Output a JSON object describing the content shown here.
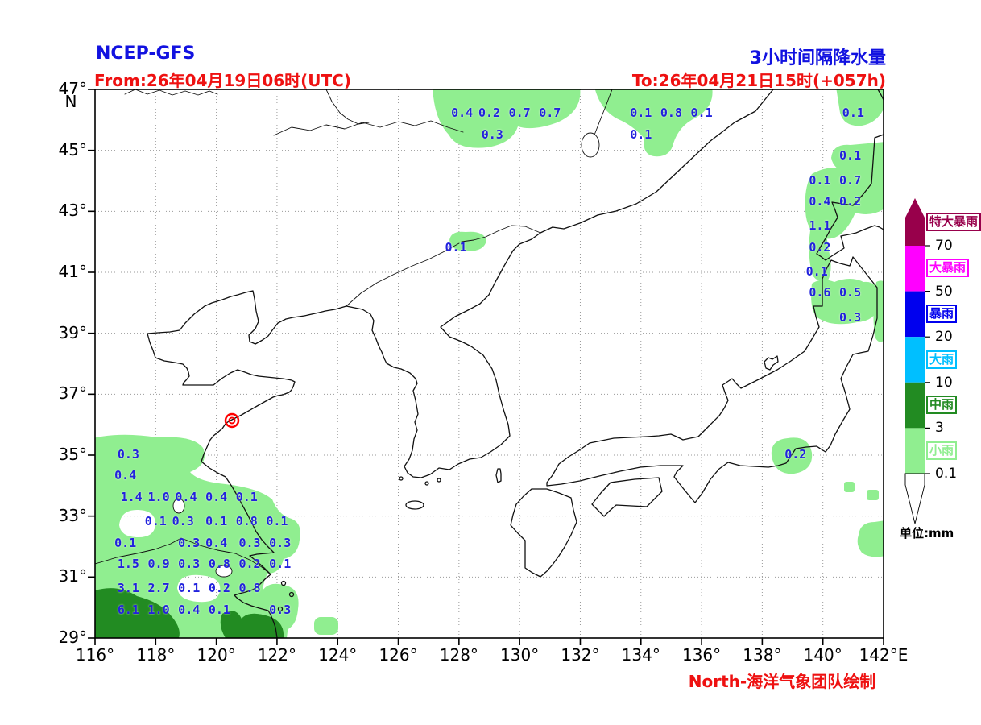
{
  "header": {
    "model_label": "NCEP-GFS",
    "title": "3小时间隔降水量",
    "from_label": "From:26年04月19日06时(UTC)",
    "to_label": "To:26年04月21日15时(+057h)"
  },
  "footer": {
    "credit": "North-海洋气象团队绘制"
  },
  "colors": {
    "title_blue": "#1212e0",
    "annot_red": "#ee1111",
    "value_blue": "#2222dd",
    "light_green": "#90ee90",
    "dark_green": "#228b22",
    "cyan": "#00bfff",
    "blue": "#0000ee",
    "magenta": "#ff00ff",
    "maroon": "#98004b",
    "marker_red": "#ff0000"
  },
  "map": {
    "x_axis": {
      "ticks": [
        "116°",
        "118°",
        "120°",
        "122°",
        "124°",
        "126°",
        "128°",
        "130°",
        "132°",
        "134°",
        "136°",
        "138°",
        "140°",
        "142°E"
      ],
      "lon_values": [
        116,
        118,
        120,
        122,
        124,
        126,
        128,
        130,
        132,
        134,
        136,
        138,
        140,
        142
      ]
    },
    "y_axis": {
      "ticks": [
        "47°",
        "45°",
        "43°",
        "41°",
        "39°",
        "37°",
        "35°",
        "33°",
        "31°",
        "29°"
      ],
      "lat_values": [
        47,
        45,
        43,
        41,
        39,
        37,
        35,
        33,
        31,
        29
      ],
      "hemisphere_label": "N"
    }
  },
  "legend": {
    "unit_label": "单位:mm",
    "thresholds": [
      "70",
      "50",
      "20",
      "10",
      "3",
      "0.1"
    ],
    "categories": [
      {
        "label": "特大暴雨",
        "color": "#98004b"
      },
      {
        "label": "大暴雨",
        "color": "#ff00ff"
      },
      {
        "label": "暴雨",
        "color": "#0000ee"
      },
      {
        "label": "大雨",
        "color": "#00bfff"
      },
      {
        "label": "中雨",
        "color": "#228b22"
      },
      {
        "label": "小雨",
        "color": "#90ee90"
      }
    ]
  },
  "chart_data": {
    "type": "heatmap",
    "title": "3小时间隔降水量",
    "model": "NCEP-GFS",
    "valid_from": "26年04月19日06时(UTC)",
    "valid_to": "26年04月21日15时(+057h)",
    "units": "mm",
    "lon_range": [
      116,
      142
    ],
    "lat_range": [
      29,
      47
    ],
    "grid_interval_deg": 2,
    "legend_scale_mm": [
      0.1,
      3,
      10,
      20,
      50,
      70
    ],
    "marker": {
      "name": "cyclone-center-marker",
      "lon": 120.5,
      "lat": 36.1
    },
    "points": [
      {
        "v": "0.4",
        "lon": 128.1,
        "lat": 46.2
      },
      {
        "v": "0.2",
        "lon": 129.0,
        "lat": 46.2
      },
      {
        "v": "0.7",
        "lon": 130.0,
        "lat": 46.2
      },
      {
        "v": "0.7",
        "lon": 131.0,
        "lat": 46.2
      },
      {
        "v": "0.3",
        "lon": 129.1,
        "lat": 45.5
      },
      {
        "v": "0.1",
        "lon": 134.0,
        "lat": 46.2
      },
      {
        "v": "0.8",
        "lon": 135.0,
        "lat": 46.2
      },
      {
        "v": "0.1",
        "lon": 136.0,
        "lat": 46.2
      },
      {
        "v": "0.1",
        "lon": 134.0,
        "lat": 45.5
      },
      {
        "v": "0.1",
        "lon": 141.0,
        "lat": 46.2
      },
      {
        "v": "0.1",
        "lon": 140.9,
        "lat": 44.8
      },
      {
        "v": "0.1",
        "lon": 139.9,
        "lat": 44.0
      },
      {
        "v": "0.7",
        "lon": 140.9,
        "lat": 44.0
      },
      {
        "v": "0.4",
        "lon": 139.9,
        "lat": 43.3
      },
      {
        "v": "0.2",
        "lon": 140.9,
        "lat": 43.3
      },
      {
        "v": "1.1",
        "lon": 139.9,
        "lat": 42.5
      },
      {
        "v": "0.2",
        "lon": 139.9,
        "lat": 41.8
      },
      {
        "v": "0.1",
        "lon": 139.8,
        "lat": 41.0
      },
      {
        "v": "0.6",
        "lon": 139.9,
        "lat": 40.3
      },
      {
        "v": "0.5",
        "lon": 140.9,
        "lat": 40.3
      },
      {
        "v": "0.3",
        "lon": 140.9,
        "lat": 39.5
      },
      {
        "v": "0.1",
        "lon": 127.9,
        "lat": 41.8
      },
      {
        "v": "0.2",
        "lon": 139.1,
        "lat": 35.0
      },
      {
        "v": "0.3",
        "lon": 117.1,
        "lat": 35.0
      },
      {
        "v": "0.4",
        "lon": 117.0,
        "lat": 34.3
      },
      {
        "v": "1.4",
        "lon": 117.2,
        "lat": 33.6
      },
      {
        "v": "1.0",
        "lon": 118.1,
        "lat": 33.6
      },
      {
        "v": "0.4",
        "lon": 119.0,
        "lat": 33.6
      },
      {
        "v": "0.4",
        "lon": 120.0,
        "lat": 33.6
      },
      {
        "v": "0.1",
        "lon": 121.0,
        "lat": 33.6
      },
      {
        "v": "0.1",
        "lon": 118.0,
        "lat": 32.8
      },
      {
        "v": "0.3",
        "lon": 118.9,
        "lat": 32.8
      },
      {
        "v": "0.1",
        "lon": 120.0,
        "lat": 32.8
      },
      {
        "v": "0.8",
        "lon": 121.0,
        "lat": 32.8
      },
      {
        "v": "0.1",
        "lon": 122.0,
        "lat": 32.8
      },
      {
        "v": "0.1",
        "lon": 117.0,
        "lat": 32.1
      },
      {
        "v": "0.3",
        "lon": 119.1,
        "lat": 32.1
      },
      {
        "v": "0.4",
        "lon": 120.0,
        "lat": 32.1
      },
      {
        "v": "0.3",
        "lon": 121.1,
        "lat": 32.1
      },
      {
        "v": "0.3",
        "lon": 122.1,
        "lat": 32.1
      },
      {
        "v": "1.5",
        "lon": 117.1,
        "lat": 31.4
      },
      {
        "v": "0.9",
        "lon": 118.1,
        "lat": 31.4
      },
      {
        "v": "0.3",
        "lon": 119.1,
        "lat": 31.4
      },
      {
        "v": "0.8",
        "lon": 120.1,
        "lat": 31.4
      },
      {
        "v": "0.2",
        "lon": 121.1,
        "lat": 31.4
      },
      {
        "v": "0.1",
        "lon": 122.1,
        "lat": 31.4
      },
      {
        "v": "3.1",
        "lon": 117.1,
        "lat": 30.6
      },
      {
        "v": "2.7",
        "lon": 118.1,
        "lat": 30.6
      },
      {
        "v": "0.1",
        "lon": 119.1,
        "lat": 30.6
      },
      {
        "v": "0.2",
        "lon": 120.1,
        "lat": 30.6
      },
      {
        "v": "0.8",
        "lon": 121.1,
        "lat": 30.6
      },
      {
        "v": "6.1",
        "lon": 117.1,
        "lat": 29.9
      },
      {
        "v": "1.0",
        "lon": 118.1,
        "lat": 29.9
      },
      {
        "v": "0.4",
        "lon": 119.1,
        "lat": 29.9
      },
      {
        "v": "0.1",
        "lon": 120.1,
        "lat": 29.9
      },
      {
        "v": "0.3",
        "lon": 122.1,
        "lat": 29.9
      }
    ]
  }
}
